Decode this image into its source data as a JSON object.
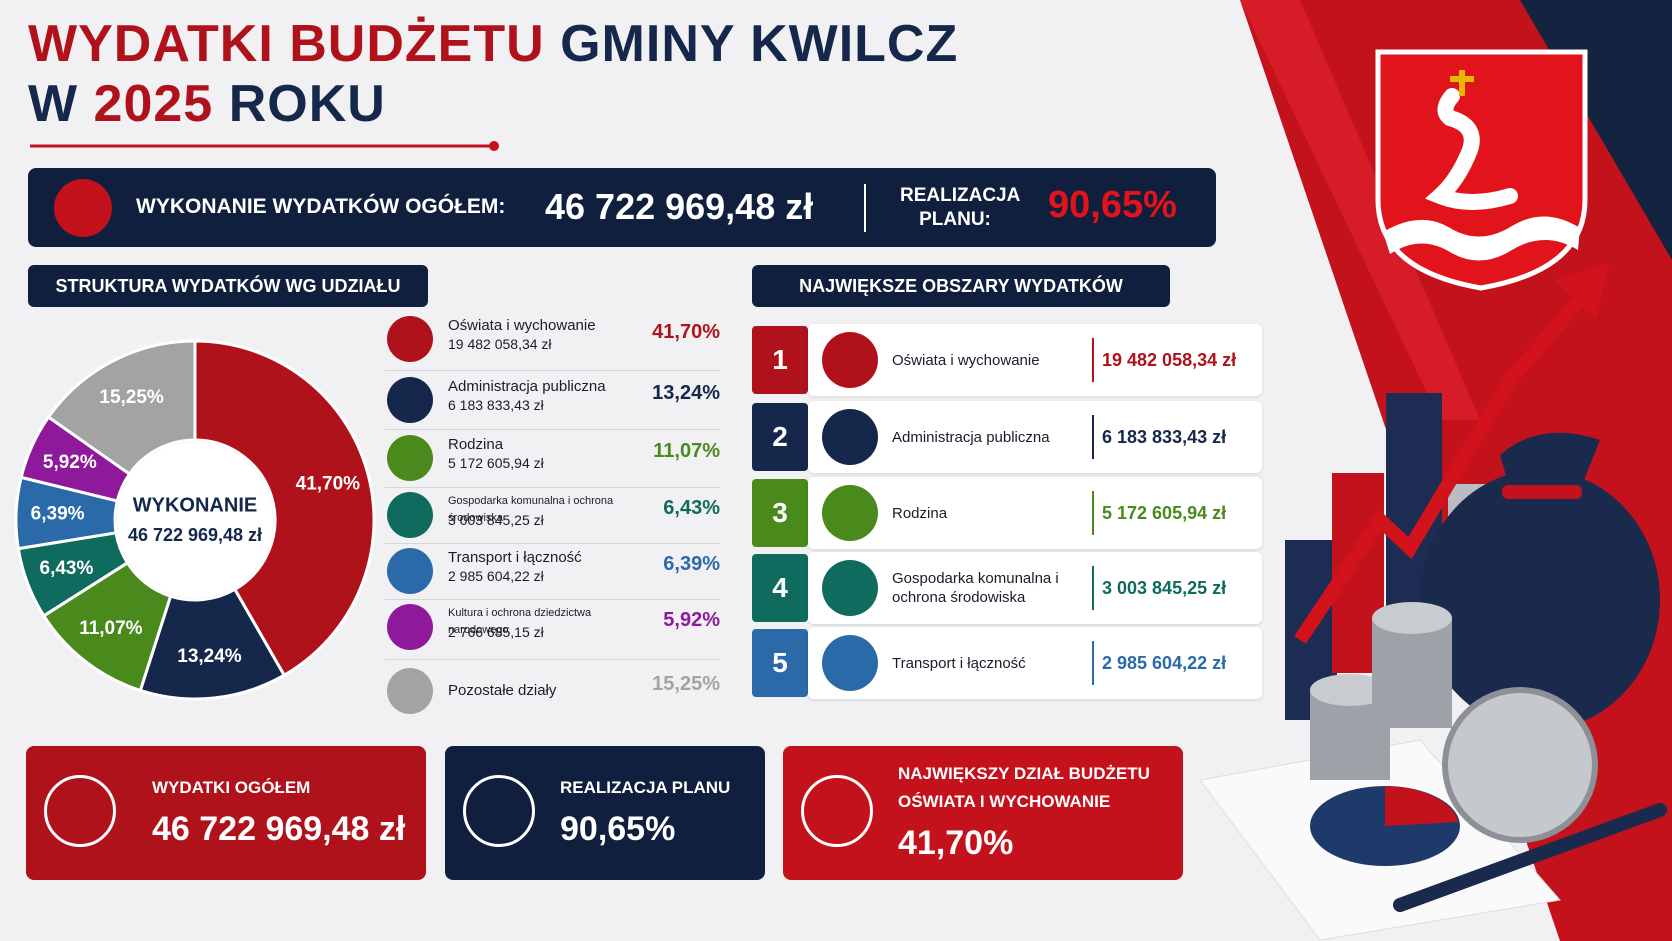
{
  "title": {
    "line1_red": "WYDATKI BUDŻETU",
    "line1_navy": "GMINY KWILCZ",
    "line2_a": "W",
    "line2_year": "2025",
    "line2_b": "ROKU"
  },
  "summary_bar": {
    "label": "WYKONANIE WYDATKÓW OGÓŁEM:",
    "amount": "46 722 969,48 zł",
    "realization_label": "REALIZACJA PLANU:",
    "realization_value": "90,65%"
  },
  "chart_data": {
    "type": "donut",
    "title": "STRUKTURA WYDATKÓW WG UDZIAŁU",
    "center_label": "WYKONANIE",
    "center_value": "46 722 969,48 zł",
    "categories": [
      "Oświata i wychowanie",
      "Administracja publiczna",
      "Rodzina",
      "Gospodarka komunalna i ochrona środowiska",
      "Transport i łączność",
      "Kultura i ochrona dziedzictwa narodowego",
      "Pozostałe działy"
    ],
    "values": [
      41.7,
      13.24,
      11.07,
      6.43,
      6.39,
      5.92,
      15.25
    ],
    "value_labels": [
      "41,70%",
      "13,24%",
      "11,07%",
      "6,43%",
      "6,39%",
      "5,92%",
      "15,25%"
    ],
    "amounts": [
      "19 482 058,34 zł",
      "6 183 833,43 zł",
      "5 172 605,94 zł",
      "3 003 845,25 zł",
      "2 985 604,22 zł",
      "2 766 685,15 zł",
      null
    ],
    "colors": [
      "#b0121b",
      "#15284b",
      "#4a8a1c",
      "#0f6b5e",
      "#2a6aa8",
      "#8e1a9b",
      "#a3a3a3"
    ]
  },
  "top_areas": {
    "title": "NAJWIĘKSZE OBSZARY WYDATKÓW",
    "items": [
      {
        "rank": "1",
        "name": "Oświata i wychowanie",
        "amount": "19 482 058,34 zł",
        "color": "#b0121b"
      },
      {
        "rank": "2",
        "name": "Administracja publiczna",
        "amount": "6 183 833,43 zł",
        "color": "#15284b"
      },
      {
        "rank": "3",
        "name": "Rodzina",
        "amount": "5 172 605,94 zł",
        "color": "#4a8a1c"
      },
      {
        "rank": "4",
        "name": "Gospodarka komunalna i ochrona środowiska",
        "amount": "3 003 845,25 zł",
        "color": "#0f6b5e"
      },
      {
        "rank": "5",
        "name": "Transport i łączność",
        "amount": "2 985 604,22 zł",
        "color": "#2a6aa8"
      }
    ]
  },
  "cards": [
    {
      "label": "WYDATKI OGÓŁEM",
      "value": "46 722 969,48 zł"
    },
    {
      "label": "REALIZACJA PLANU",
      "value": "90,65%"
    },
    {
      "label": "NAJWIĘKSZY DZIAŁ BUDŻETU",
      "sublabel": "OŚWIATA I WYCHOWANIE",
      "value": "41,70%"
    }
  ]
}
